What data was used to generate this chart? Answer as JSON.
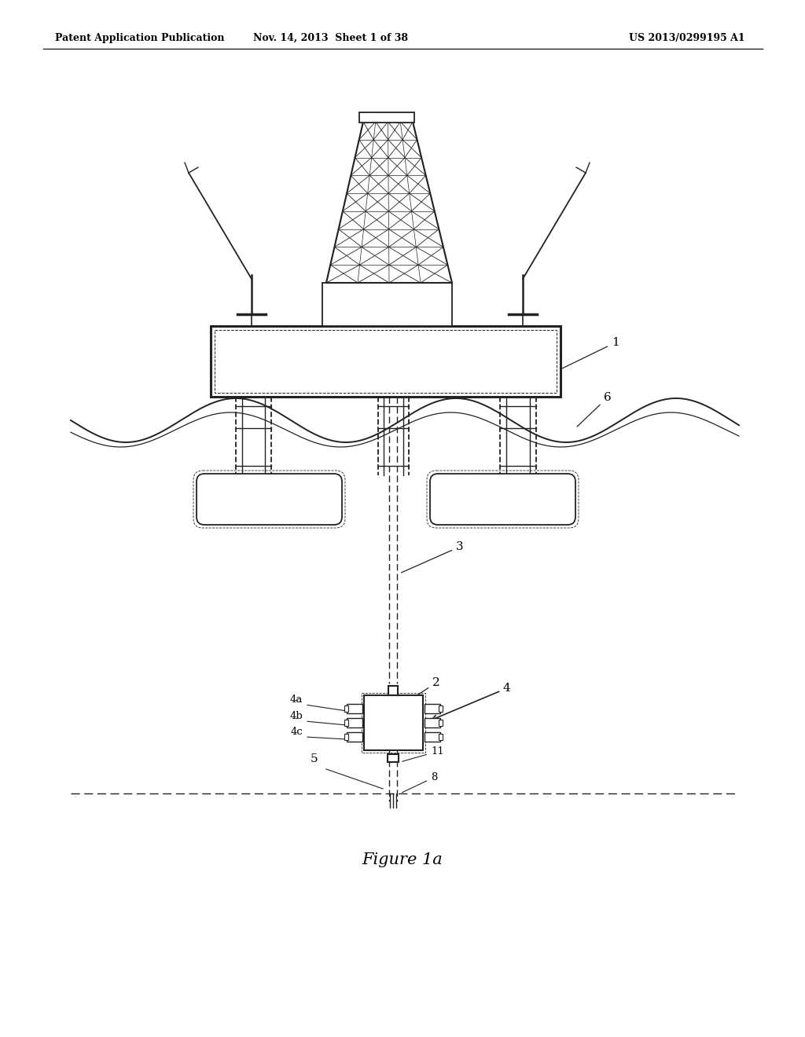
{
  "bg_color": "#ffffff",
  "line_color": "#222222",
  "header_left": "Patent Application Publication",
  "header_mid": "Nov. 14, 2013  Sheet 1 of 38",
  "header_right": "US 2013/0299195 A1",
  "figure_label": "Figure 1a"
}
